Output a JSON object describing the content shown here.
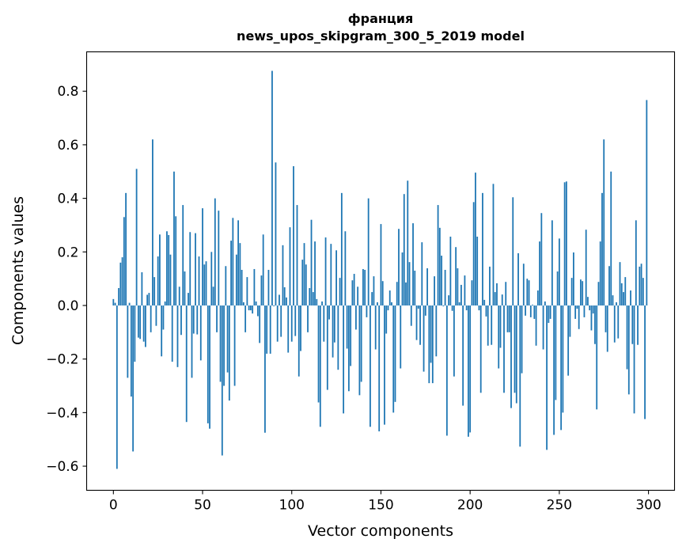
{
  "chart_data": {
    "type": "bar",
    "title": "франция",
    "subtitle": "news_upos_skipgram_300_5_2019 model",
    "xlabel": "Vector components",
    "ylabel": "Components values",
    "xlim": [
      -15,
      314.6
    ],
    "ylim": [
      -0.69,
      0.947
    ],
    "xticks": [
      0,
      50,
      100,
      150,
      200,
      250,
      300
    ],
    "xtick_labels": [
      "0",
      "50",
      "100",
      "150",
      "200",
      "250",
      "300"
    ],
    "yticks": [
      -0.6,
      -0.4,
      -0.2,
      0.0,
      0.2,
      0.4,
      0.6,
      0.8
    ],
    "ytick_labels": [
      "−0.6",
      "−0.4",
      "−0.2",
      "0.0",
      "0.2",
      "0.4",
      "0.6",
      "0.8"
    ],
    "grid": false,
    "bar_color": "#1f77b4",
    "values": [
      0.024,
      0.01,
      -0.61,
      0.065,
      0.16,
      0.18,
      0.33,
      0.42,
      -0.27,
      0.01,
      -0.34,
      -0.545,
      -0.21,
      0.51,
      -0.12,
      -0.125,
      0.124,
      -0.135,
      -0.155,
      0.04,
      0.047,
      -0.1,
      0.62,
      0.106,
      -0.076,
      0.183,
      0.265,
      -0.19,
      -0.09,
      0.015,
      0.277,
      0.263,
      0.19,
      -0.21,
      0.5,
      0.333,
      -0.23,
      0.07,
      -0.11,
      0.375,
      0.127,
      -0.435,
      0.047,
      0.274,
      -0.27,
      -0.105,
      0.27,
      -0.108,
      0.183,
      -0.205,
      0.363,
      0.153,
      0.165,
      -0.44,
      -0.46,
      0.2,
      0.07,
      0.4,
      -0.1,
      0.354,
      -0.285,
      -0.56,
      -0.3,
      0.147,
      -0.25,
      -0.355,
      0.242,
      0.327,
      -0.3,
      0.19,
      0.318,
      0.233,
      0.133,
      0.012,
      -0.1,
      0.106,
      -0.018,
      -0.018,
      -0.03,
      0.136,
      0.015,
      -0.04,
      -0.14,
      0.112,
      0.265,
      -0.475,
      -0.18,
      0.133,
      -0.18,
      0.876,
      -0.003,
      0.534,
      -0.135,
      0.04,
      -0.117,
      0.225,
      0.068,
      0.03,
      -0.176,
      0.292,
      -0.135,
      0.52,
      -0.114,
      0.375,
      -0.265,
      -0.17,
      0.171,
      0.233,
      0.153,
      -0.1,
      0.065,
      0.32,
      0.05,
      0.239,
      0.024,
      -0.362,
      -0.453,
      0.015,
      -0.135,
      0.254,
      -0.315,
      -0.052,
      0.23,
      -0.194,
      -0.138,
      0.206,
      -0.24,
      0.103,
      0.42,
      -0.403,
      0.277,
      -0.161,
      -0.32,
      -0.226,
      0.094,
      0.118,
      -0.09,
      0.07,
      -0.335,
      -0.285,
      0.136,
      0.133,
      -0.044,
      0.4,
      -0.453,
      0.05,
      0.109,
      -0.164,
      0.012,
      -0.47,
      0.304,
      0.091,
      -0.445,
      -0.105,
      -0.018,
      0.056,
      0.012,
      -0.4,
      -0.36,
      0.088,
      0.286,
      -0.235,
      0.198,
      0.416,
      0.086,
      0.466,
      0.162,
      -0.076,
      0.307,
      0.13,
      -0.129,
      -0.012,
      -0.147,
      0.236,
      -0.247,
      -0.038,
      0.139,
      -0.29,
      -0.214,
      -0.29,
      0.109,
      -0.19,
      0.375,
      0.29,
      0.186,
      -0.003,
      0.133,
      -0.486,
      0.038,
      0.257,
      -0.02,
      -0.265,
      0.218,
      0.139,
      0.012,
      0.077,
      -0.374,
      0.112,
      -0.018,
      -0.49,
      -0.474,
      0.094,
      0.386,
      0.496,
      0.257,
      -0.018,
      -0.326,
      0.42,
      0.021,
      -0.041,
      -0.15,
      0.145,
      -0.147,
      0.454,
      0.05,
      0.083,
      -0.235,
      -0.158,
      0.041,
      -0.326,
      0.088,
      -0.1,
      -0.1,
      -0.383,
      0.404,
      -0.326,
      -0.365,
      0.195,
      -0.527,
      -0.253,
      0.156,
      -0.038,
      0.1,
      0.094,
      -0.044,
      0.003,
      -0.05,
      -0.15,
      0.056,
      0.239,
      0.345,
      -0.164,
      0.015,
      -0.539,
      -0.065,
      -0.05,
      0.318,
      -0.483,
      -0.353,
      0.127,
      0.25,
      -0.465,
      -0.4,
      0.46,
      0.463,
      -0.262,
      -0.117,
      0.103,
      0.198,
      -0.05,
      -0.012,
      -0.088,
      0.097,
      0.091,
      -0.044,
      0.283,
      0.032,
      -0.018,
      -0.093,
      -0.03,
      -0.144,
      -0.388,
      0.088,
      0.239,
      0.42,
      0.62,
      -0.1,
      -0.173,
      0.147,
      0.5,
      0.038,
      -0.138,
      0.012,
      -0.123,
      0.162,
      0.083,
      0.05,
      0.106,
      -0.238,
      -0.332,
      0.056,
      -0.144,
      -0.403,
      0.318,
      -0.147,
      0.145,
      0.156,
      0.103,
      -0.424,
      0.767
    ]
  }
}
